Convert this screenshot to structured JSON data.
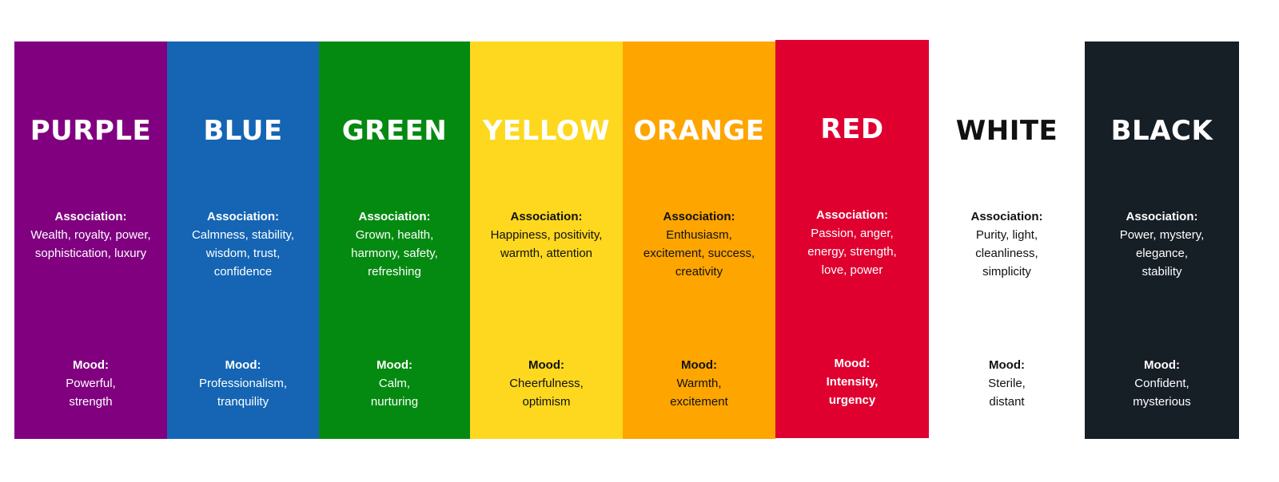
{
  "columns": [
    {
      "title": "PURPLE",
      "bg": "#800080",
      "fg": "#ffffff",
      "association_label": "Association:",
      "association": "Wealth, royalty, power, sophistication, luxury",
      "mood_label": "Mood:",
      "mood": "Powerful, strength",
      "mood_bold": false
    },
    {
      "title": "BLUE",
      "bg": "#1565b4",
      "fg": "#ffffff",
      "association_label": "Association:",
      "association": "Calmness, stability, wisdom, trust, confidence",
      "mood_label": "Mood:",
      "mood": "Professionalism, tranquility",
      "mood_bold": false
    },
    {
      "title": "GREEN",
      "bg": "#058a11",
      "fg": "#ffffff",
      "association_label": "Association:",
      "association": "Grown, health, harmony, safety, refreshing",
      "mood_label": "Mood:",
      "mood": "Calm, nurturing",
      "mood_bold": false
    },
    {
      "title": "YELLOW",
      "bg": "#fdd81f",
      "fg": "#111111",
      "title_fg": "#ffffff",
      "association_label": "Association:",
      "association": "Happiness, positivity, warmth, attention",
      "mood_label": "Mood:",
      "mood": "Cheerfulness, optimism",
      "mood_bold": false
    },
    {
      "title": "ORANGE",
      "bg": "#fea500",
      "fg": "#111111",
      "title_fg": "#ffffff",
      "association_label": "Association:",
      "association": "Enthusiasm, excitement, success, creativity",
      "mood_label": "Mood:",
      "mood": "Warmth, excitement",
      "mood_bold": false
    },
    {
      "title": "RED",
      "bg": "#df0030",
      "fg": "#ffffff",
      "association_label": "Association:",
      "association": "Passion, anger, energy, strength, love, power",
      "mood_label": "Mood:",
      "mood": "Intensity, urgency",
      "mood_bold": true
    },
    {
      "title": "WHITE",
      "bg": "#ffffff",
      "fg": "#111111",
      "association_label": "Association:",
      "association": "Purity, light, cleanliness, simplicity",
      "mood_label": "Mood:",
      "mood": "Sterile, distant",
      "mood_bold": false
    },
    {
      "title": "BLACK",
      "bg": "#161e26",
      "fg": "#ffffff",
      "association_label": "Association:",
      "association": "Power, mystery, elegance, stability",
      "mood_label": "Mood:",
      "mood": "Confident, mysterious",
      "mood_bold": false
    }
  ]
}
